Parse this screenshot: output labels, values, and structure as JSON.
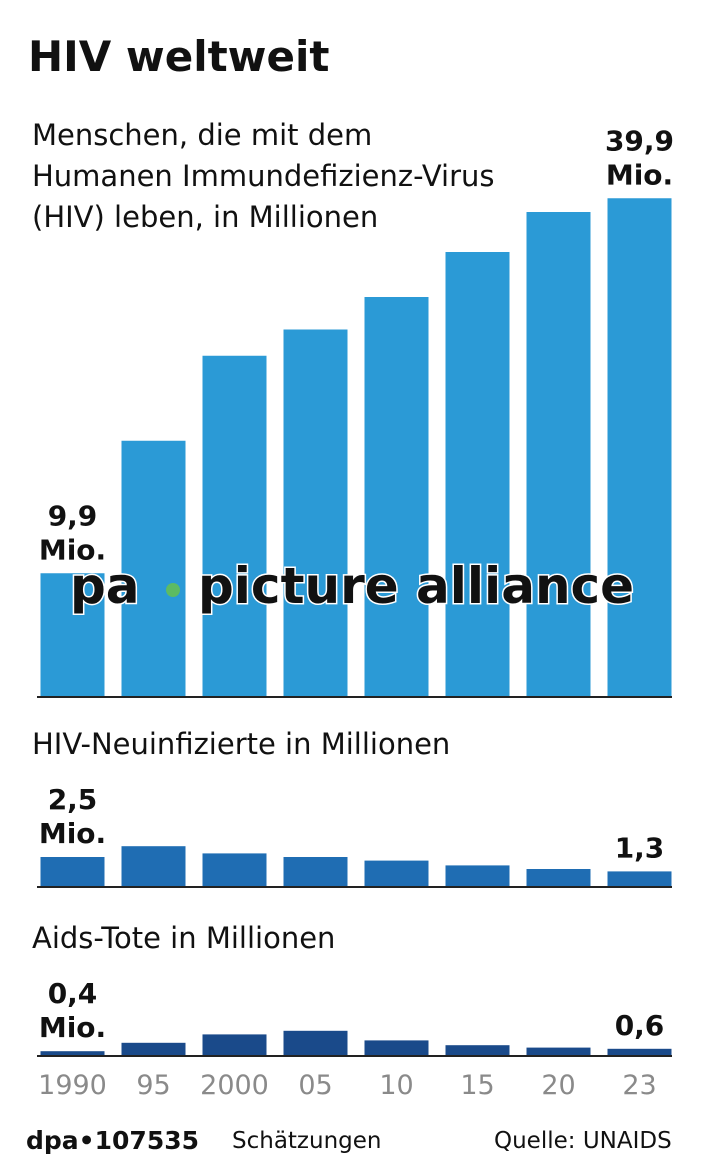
{
  "title": "HIV weltweit",
  "chart_data": [
    {
      "type": "bar",
      "title": "Menschen, die mit dem Humanen Immundefizienz-Virus (HIV) leben, in Millionen",
      "categories": [
        "1990",
        "95",
        "2000",
        "05",
        "10",
        "15",
        "20",
        "23"
      ],
      "values": [
        9.9,
        20.5,
        27.3,
        29.4,
        32.0,
        35.6,
        38.8,
        39.9
      ],
      "value_labels": [
        "9,9 Mio.",
        null,
        null,
        null,
        null,
        null,
        null,
        "39,9 Mio."
      ],
      "color": "#2b9ad6",
      "ylim": [
        0,
        40
      ]
    },
    {
      "type": "bar",
      "title": "HIV-Neuinfizierte in Millionen",
      "categories": [
        "1990",
        "95",
        "2000",
        "05",
        "10",
        "15",
        "20",
        "23"
      ],
      "values": [
        2.5,
        3.4,
        2.8,
        2.5,
        2.2,
        1.8,
        1.5,
        1.3
      ],
      "value_labels": [
        "2,5 Mio.",
        null,
        null,
        null,
        null,
        null,
        null,
        "1,3"
      ],
      "color": "#1f6db3",
      "ylim": [
        0,
        3.5
      ]
    },
    {
      "type": "bar",
      "title": "Aids-Tote in Millionen",
      "categories": [
        "1990",
        "95",
        "2000",
        "05",
        "10",
        "15",
        "20",
        "23"
      ],
      "values": [
        0.4,
        1.1,
        1.8,
        2.1,
        1.3,
        0.9,
        0.7,
        0.6
      ],
      "value_labels": [
        "0,4 Mio.",
        null,
        null,
        null,
        null,
        null,
        null,
        "0,6"
      ],
      "color": "#1a4a8a",
      "ylim": [
        0,
        2.5
      ]
    }
  ],
  "watermark": {
    "left": "pa",
    "right": "picture alliance"
  },
  "footer": {
    "id": "dpa•107535",
    "note": "Schätzungen",
    "source": "Quelle: UNAIDS"
  }
}
